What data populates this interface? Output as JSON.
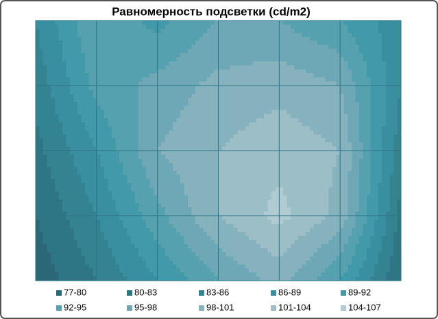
{
  "chart_data": {
    "type": "contour",
    "title": "Равномерность подсветки (cd/m2)",
    "values": [
      [
        86,
        95,
        91,
        95,
        95,
        92,
        87
      ],
      [
        84,
        93,
        96,
        99,
        100,
        98,
        86
      ],
      [
        82,
        89,
        98,
        101,
        103,
        101,
        84
      ],
      [
        80,
        86,
        94,
        101,
        105,
        100,
        82
      ],
      [
        78,
        83,
        89,
        95,
        99,
        92,
        80
      ]
    ],
    "levels": [
      77,
      80,
      83,
      86,
      89,
      92,
      95,
      98,
      101,
      104,
      107
    ],
    "series": [
      {
        "name": "77-80",
        "color": "#2b6777"
      },
      {
        "name": "80-83",
        "color": "#2e7585"
      },
      {
        "name": "83-86",
        "color": "#338393"
      },
      {
        "name": "86-89",
        "color": "#398fa0"
      },
      {
        "name": "89-92",
        "color": "#4199a9"
      },
      {
        "name": "92-95",
        "color": "#55a1b0"
      },
      {
        "name": "95-98",
        "color": "#6ea8b6"
      },
      {
        "name": "98-101",
        "color": "#86b2bd"
      },
      {
        "name": "101-104",
        "color": "#9cbec7"
      },
      {
        "name": "104-107",
        "color": "#b0cbd2"
      }
    ],
    "grid": true
  }
}
